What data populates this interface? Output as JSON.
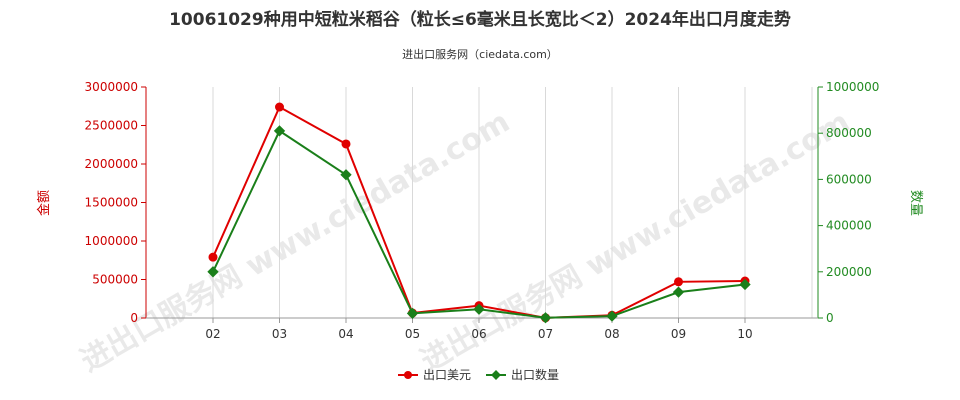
{
  "chart_data": {
    "type": "line",
    "title": "10061029种用中短粒米稻谷（粒长≤6毫米且长宽比＜2）2024年出口月度走势",
    "subtitle": "进出口服务网（ciedata.com）",
    "watermark": "进出口服务网 www.ciedata.com",
    "categories": [
      "02",
      "03",
      "04",
      "05",
      "06",
      "07",
      "08",
      "09",
      "10"
    ],
    "y_left": {
      "label": "金额",
      "min": 0,
      "max": 3000000,
      "ticks": [
        0,
        500000,
        1000000,
        1500000,
        2000000,
        2500000,
        3000000
      ],
      "color": "#cc0000"
    },
    "y_right": {
      "label": "数量",
      "min": 0,
      "max": 1000000,
      "ticks": [
        0,
        200000,
        400000,
        600000,
        800000,
        1000000
      ],
      "color": "#228b22"
    },
    "grid": "vertical",
    "legend_position": "bottom-center",
    "series": [
      {
        "name": "出口美元",
        "axis": "left",
        "color": "#e00000",
        "values": [
          790000,
          2740000,
          2260000,
          65000,
          160000,
          2000,
          35000,
          470000,
          480000
        ]
      },
      {
        "name": "出口数量",
        "axis": "right",
        "color": "#1a7f1a",
        "values": [
          200000,
          810000,
          620000,
          20000,
          38000,
          1000,
          8000,
          112000,
          145000
        ]
      }
    ]
  }
}
